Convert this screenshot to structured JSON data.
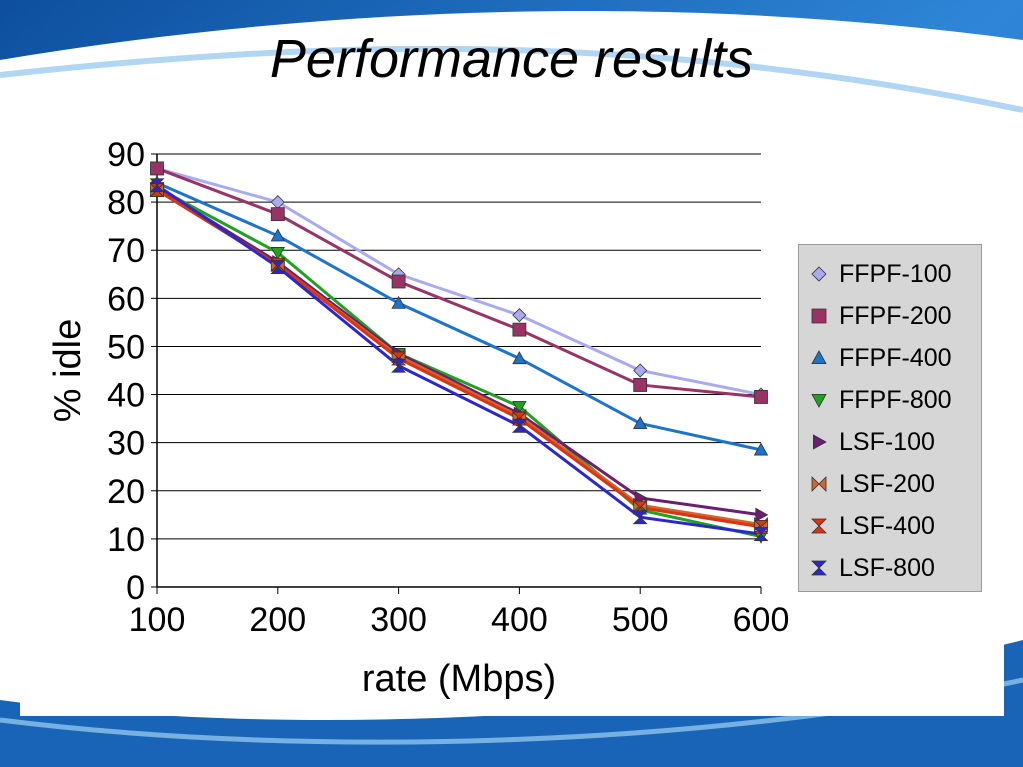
{
  "slide": {
    "title": "Performance results"
  },
  "colors": {
    "background_blue": "#1565c0",
    "background_light": "#4aa3e8",
    "legend_bg": "#d6d6d6"
  },
  "chart_data": {
    "type": "line",
    "title": "",
    "xlabel": "rate (Mbps)",
    "ylabel": "% idle",
    "x": [
      100,
      200,
      300,
      400,
      500,
      600
    ],
    "x_ticks": [
      "100",
      "200",
      "300",
      "400",
      "500",
      "600"
    ],
    "y_ticks": [
      "0",
      "10",
      "20",
      "30",
      "40",
      "50",
      "60",
      "70",
      "80",
      "90"
    ],
    "xlim": [
      100,
      600
    ],
    "ylim": [
      0,
      90
    ],
    "grid": "horizontal",
    "legend_position": "right",
    "series": [
      {
        "name": "FFPF-100",
        "color": "#a9aaf0",
        "marker": "diamond",
        "values": [
          87,
          80,
          65,
          56.5,
          45,
          40
        ]
      },
      {
        "name": "FFPF-200",
        "color": "#993366",
        "marker": "square",
        "values": [
          87,
          77.5,
          63.5,
          53.5,
          42,
          39.5
        ]
      },
      {
        "name": "FFPF-400",
        "color": "#1f73c8",
        "marker": "triangle-up",
        "values": [
          84,
          73,
          59,
          47.5,
          34,
          28.5
        ]
      },
      {
        "name": "FFPF-800",
        "color": "#22a022",
        "marker": "triangle-down",
        "values": [
          83,
          69.5,
          48.5,
          37.5,
          16,
          10.5
        ]
      },
      {
        "name": "LSF-100",
        "color": "#6a1f70",
        "marker": "triangle-right",
        "values": [
          83,
          67.5,
          48.5,
          36,
          18.5,
          15
        ]
      },
      {
        "name": "LSF-200",
        "color": "#cc6633",
        "marker": "bowtie",
        "values": [
          82.5,
          67,
          48,
          35.5,
          17,
          13
        ]
      },
      {
        "name": "LSF-400",
        "color": "#dd3311",
        "marker": "hourglass",
        "values": [
          82.5,
          67,
          47.5,
          35,
          16.5,
          12.5
        ]
      },
      {
        "name": "LSF-800",
        "color": "#2b28c8",
        "marker": "hourglass",
        "values": [
          83.5,
          66.5,
          46,
          33.5,
          14.5,
          11
        ]
      }
    ]
  }
}
